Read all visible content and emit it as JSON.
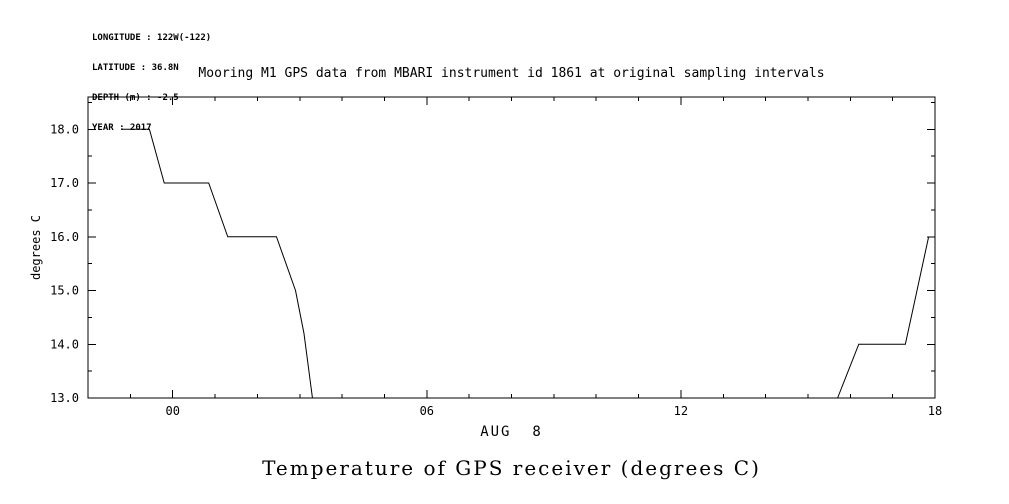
{
  "meta": {
    "longitude": "LONGITUDE : 122W(-122)",
    "latitude": "LATITUDE : 36.8N",
    "depth": "DEPTH (m) : -2.5",
    "year": "YEAR : 2017"
  },
  "title": "Mooring M1 GPS data from MBARI instrument id 1861 at original sampling intervals",
  "caption": "Temperature of GPS receiver (degrees C)",
  "chart_data": {
    "type": "line",
    "title": "Mooring M1 GPS data from MBARI instrument id 1861 at original sampling intervals",
    "xlabel": "AUG  8",
    "ylabel": "degrees C",
    "xlim": [
      -2,
      18
    ],
    "ylim": [
      13,
      18.6
    ],
    "xticks": [
      0,
      6,
      12,
      18
    ],
    "xtick_labels": [
      "00",
      "06",
      "12",
      "18"
    ],
    "x_minor_step": 1,
    "yticks": [
      13,
      14,
      15,
      16,
      17,
      18
    ],
    "ytick_labels": [
      "13.0",
      "14.0",
      "15.0",
      "16.0",
      "17.0",
      "18.0"
    ],
    "y_minor_step": 0.5,
    "line_color": "#000000",
    "series": [
      {
        "name": "GPS receiver temperature",
        "segments": [
          {
            "x": [
              -1.2,
              -0.55,
              -0.2,
              0.85,
              1.3,
              2.45,
              2.9,
              3.1,
              3.3
            ],
            "y": [
              18.0,
              18.0,
              17.0,
              17.0,
              16.0,
              16.0,
              15.0,
              14.2,
              13.0
            ]
          },
          {
            "x": [
              15.7,
              16.2,
              17.15,
              17.3,
              17.85
            ],
            "y": [
              13.0,
              14.0,
              14.0,
              14.0,
              16.0
            ]
          }
        ]
      }
    ],
    "grid": false,
    "legend": false
  }
}
